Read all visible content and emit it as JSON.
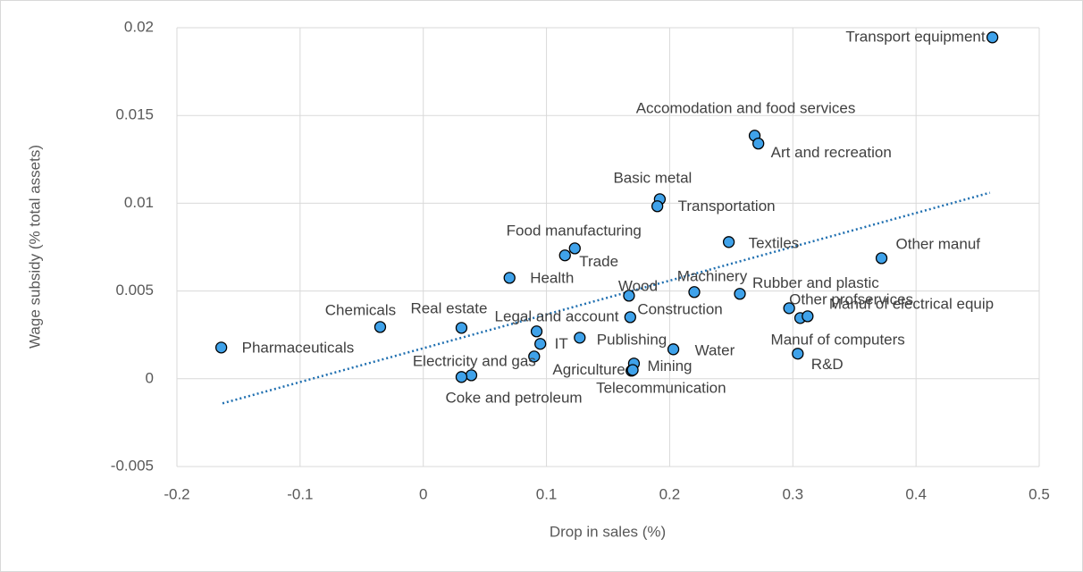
{
  "chart_data": {
    "type": "scatter",
    "x_label": "Drop in sales (%)",
    "y_label": "Wage subsidy (% total assets)",
    "x": [
      0.462,
      0.269,
      0.272,
      0.192,
      0.19,
      0.248,
      0.372,
      0.123,
      0.115,
      0.07,
      0.22,
      0.257,
      0.167,
      0.297,
      0.306,
      0.312,
      0.304,
      0.168,
      -0.035,
      0.031,
      0.092,
      0.095,
      0.127,
      -0.164,
      0.203,
      0.09,
      0.171,
      0.169,
      0.17,
      0.039,
      0.031
    ],
    "values": [
      0.01945,
      0.01385,
      0.0134,
      0.01023,
      0.00983,
      0.00779,
      0.00687,
      0.00743,
      0.00703,
      0.00575,
      0.00494,
      0.00484,
      0.00473,
      0.00402,
      0.00346,
      0.00356,
      0.00143,
      0.00351,
      0.00295,
      0.0029,
      0.0027,
      0.00199,
      0.00234,
      0.00178,
      0.00168,
      0.00127,
      0.00087,
      0.00046,
      0.0005,
      0.0002,
      0.0001
    ],
    "labels": [
      "Transport equipment",
      "Accomodation and food services",
      "Art and recreation",
      "Basic metal",
      "Transportation",
      "Textiles",
      "Other manuf",
      "Food manufacturing",
      "Trade",
      "Health",
      "Machinery",
      "Rubber and plastic",
      "Wood",
      "Other profservices",
      "Manuf of computers",
      "Manuf of electrical equip",
      "R&D",
      "Construction",
      "Chemicals",
      "Real estate",
      "Legal and account",
      "IT",
      "Publishing",
      "Pharmaceuticals",
      "Water",
      "Electricity and gas",
      "Mining",
      "Agriculture",
      "Telecommunication",
      "Coke and petroleum",
      null
    ],
    "color": "#3fa2ea",
    "trendline": {
      "x": [
        -0.163,
        0.46
      ],
      "values": [
        -0.0014,
        0.0106
      ],
      "color": "#1f6fb0",
      "style": "dotted"
    },
    "xlim": [
      -0.2,
      0.5
    ],
    "xticks": [
      -0.2,
      -0.1,
      0,
      0.1,
      0.2,
      0.3,
      0.4,
      0.5
    ],
    "ylim": [
      -0.005,
      0.02
    ],
    "yticks": [
      -0.005,
      0,
      0.005,
      0.01,
      0.015,
      0.02
    ],
    "grid": true
  }
}
